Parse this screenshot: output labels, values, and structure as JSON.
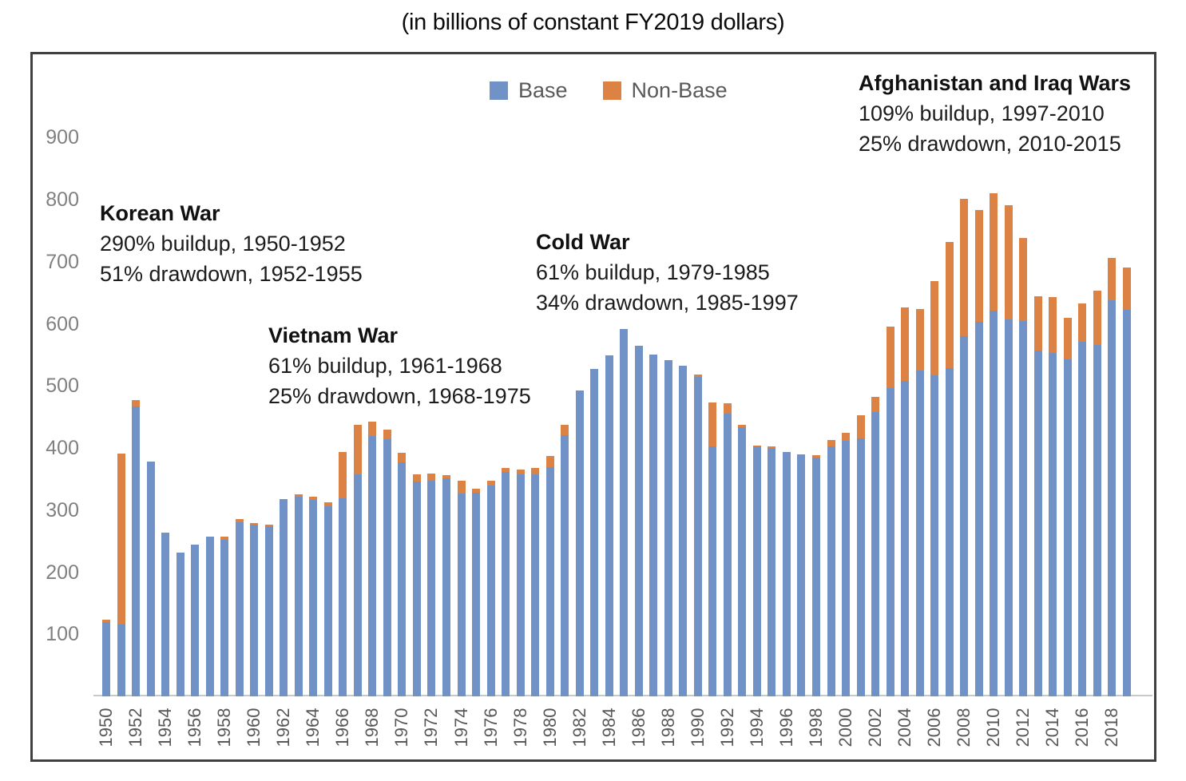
{
  "subtitle": "(in billions of constant FY2019 dollars)",
  "legend": {
    "base_label": "Base",
    "nonbase_label": "Non-Base"
  },
  "colors": {
    "base": "#7092C6",
    "non_base": "#DB8244",
    "border": "#404040",
    "axis_text": "#808080",
    "tick_text": "#595959"
  },
  "annotations": [
    {
      "title": "Korean War",
      "line1": "290% buildup, 1950-1952",
      "line2": "51% drawdown, 1952-1955"
    },
    {
      "title": "Vietnam War",
      "line1": "61% buildup, 1961-1968",
      "line2": "25% drawdown, 1968-1975"
    },
    {
      "title": "Cold War",
      "line1": "61% buildup, 1979-1985",
      "line2": "34% drawdown, 1985-1997"
    },
    {
      "title": "Afghanistan and Iraq Wars",
      "line1": "109% buildup, 1997-2010",
      "line2": "25% drawdown, 2010-2015"
    }
  ],
  "chart_data": {
    "type": "bar",
    "stacked": true,
    "title": "(in billions of constant FY2019 dollars)",
    "xlabel": "",
    "ylabel": "",
    "ylim": [
      0,
      950
    ],
    "yticks": [
      100,
      200,
      300,
      400,
      500,
      600,
      700,
      800,
      900
    ],
    "xtick_step": 2,
    "grid": false,
    "legend_position": "top-center",
    "x": [
      1950,
      1951,
      1952,
      1953,
      1954,
      1955,
      1956,
      1957,
      1958,
      1959,
      1960,
      1961,
      1962,
      1963,
      1964,
      1965,
      1966,
      1967,
      1968,
      1969,
      1970,
      1971,
      1972,
      1973,
      1974,
      1975,
      1976,
      1977,
      1978,
      1979,
      1980,
      1981,
      1982,
      1983,
      1984,
      1985,
      1986,
      1987,
      1988,
      1989,
      1990,
      1991,
      1992,
      1993,
      1994,
      1995,
      1996,
      1997,
      1998,
      1999,
      2000,
      2001,
      2002,
      2003,
      2004,
      2005,
      2006,
      2007,
      2008,
      2009,
      2010,
      2011,
      2012,
      2013,
      2014,
      2015,
      2016,
      2017,
      2018,
      2019
    ],
    "series": [
      {
        "name": "Base",
        "color": "#7092C6",
        "values": [
          120,
          116,
          467,
          378,
          264,
          232,
          245,
          257,
          252,
          280,
          276,
          274,
          318,
          322,
          316,
          306,
          319,
          357,
          419,
          414,
          377,
          346,
          347,
          351,
          327,
          328,
          340,
          361,
          358,
          358,
          369,
          421,
          493,
          527,
          549,
          592,
          565,
          550,
          542,
          532,
          514,
          403,
          456,
          433,
          402,
          400,
          394,
          390,
          385,
          403,
          412,
          415,
          458,
          497,
          508,
          525,
          517,
          529,
          580,
          603,
          621,
          607,
          605,
          557,
          553,
          543,
          571,
          566,
          638,
          623
        ]
      },
      {
        "name": "Non-Base",
        "color": "#DB8244",
        "values": [
          3,
          275,
          10,
          0,
          0,
          0,
          0,
          0,
          5,
          5,
          3,
          3,
          0,
          3,
          6,
          6,
          75,
          80,
          24,
          15,
          16,
          11,
          12,
          5,
          20,
          7,
          7,
          7,
          8,
          10,
          18,
          16,
          0,
          0,
          0,
          0,
          0,
          0,
          0,
          0,
          4,
          71,
          16,
          4,
          2,
          3,
          0,
          0,
          4,
          10,
          12,
          38,
          24,
          98,
          118,
          99,
          152,
          203,
          222,
          181,
          189,
          184,
          133,
          88,
          90,
          67,
          62,
          87,
          68,
          68
        ]
      }
    ]
  }
}
